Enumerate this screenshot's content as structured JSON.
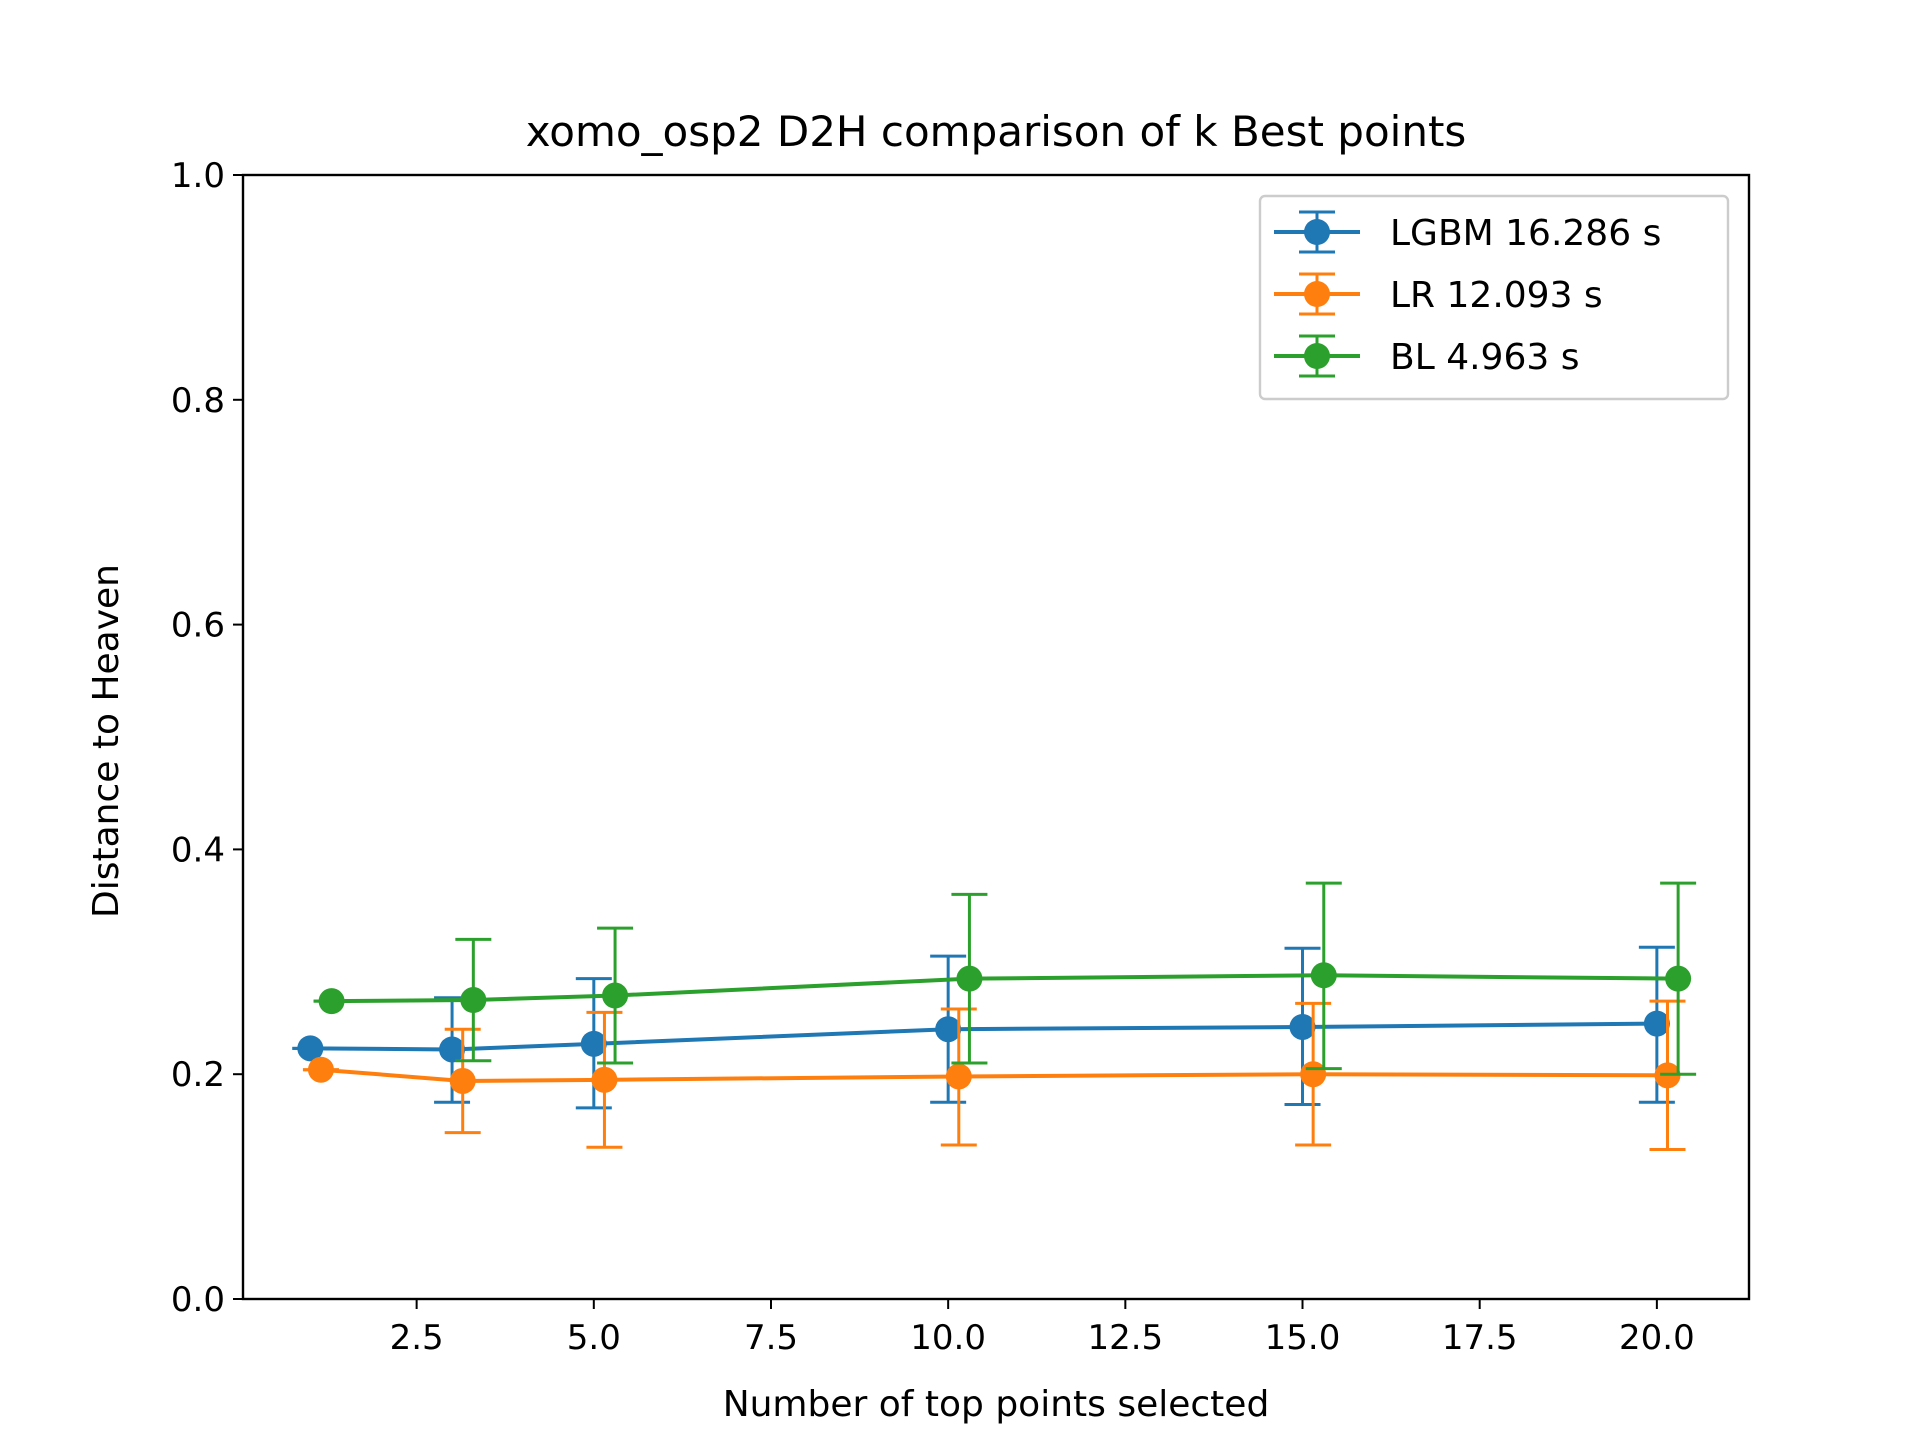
{
  "chart_data": {
    "type": "line",
    "title": "xomo_osp2 D2H comparison of k Best points",
    "xlabel": "Number of top points selected",
    "ylabel": "Distance to Heaven",
    "xlim": [
      0.05,
      21.3
    ],
    "ylim": [
      0.0,
      1.0
    ],
    "xticks": [
      2.5,
      5.0,
      7.5,
      10.0,
      12.5,
      15.0,
      17.5,
      20.0
    ],
    "xtick_labels": [
      "2.5",
      "5.0",
      "7.5",
      "10.0",
      "12.5",
      "15.0",
      "17.5",
      "20.0"
    ],
    "yticks": [
      0.0,
      0.2,
      0.4,
      0.6,
      0.8,
      1.0
    ],
    "ytick_labels": [
      "0.0",
      "0.2",
      "0.4",
      "0.6",
      "0.8",
      "1.0"
    ],
    "grid": false,
    "legend_position": "top-right",
    "series": [
      {
        "name": "LGBM 16.286 s",
        "color": "#1f77b4",
        "x": [
          1.0,
          3.0,
          5.0,
          10.0,
          15.0,
          20.0
        ],
        "y": [
          0.223,
          0.222,
          0.227,
          0.24,
          0.242,
          0.245
        ],
        "err_low": [
          0.223,
          0.175,
          0.17,
          0.175,
          0.173,
          0.175
        ],
        "err_high": [
          0.223,
          0.268,
          0.285,
          0.305,
          0.312,
          0.313
        ]
      },
      {
        "name": "LR 12.093 s",
        "color": "#ff7f0e",
        "x": [
          1.15,
          3.15,
          5.15,
          10.15,
          15.15,
          20.15
        ],
        "y": [
          0.204,
          0.194,
          0.195,
          0.198,
          0.2,
          0.199
        ],
        "err_low": [
          0.204,
          0.148,
          0.135,
          0.137,
          0.137,
          0.133
        ],
        "err_high": [
          0.204,
          0.24,
          0.255,
          0.258,
          0.263,
          0.265
        ]
      },
      {
        "name": "BL 4.963 s",
        "color": "#2ca02c",
        "x": [
          1.3,
          3.3,
          5.3,
          10.3,
          15.3,
          20.3
        ],
        "y": [
          0.265,
          0.266,
          0.27,
          0.285,
          0.288,
          0.285
        ],
        "err_low": [
          0.265,
          0.212,
          0.21,
          0.21,
          0.205,
          0.2
        ],
        "err_high": [
          0.265,
          0.32,
          0.33,
          0.36,
          0.37,
          0.37
        ]
      }
    ]
  }
}
